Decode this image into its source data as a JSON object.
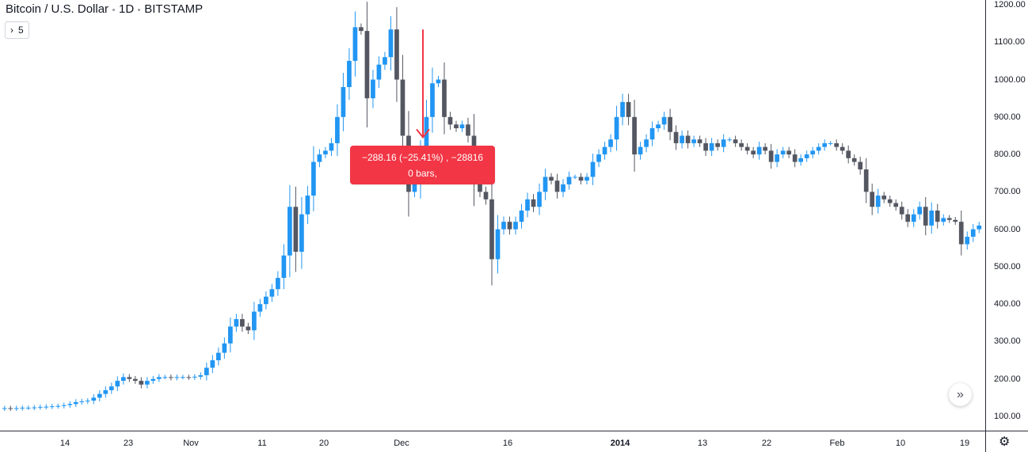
{
  "header": {
    "symbol": "Bitcoin / U.S. Dollar",
    "interval": "1D",
    "exchange": "BITSTAMP",
    "collapse_icon": "chevron-right-icon",
    "indicator_count": "5"
  },
  "measure": {
    "line1": "−288.16 (−25.41%) , −28816",
    "line2": "0 bars,",
    "color": "#f23645",
    "start_price": 1134,
    "end_price": 846
  },
  "colors": {
    "up": "#2196f3",
    "down": "#545761"
  },
  "price_axis": [
    "1200.00",
    "1100.00",
    "1000.00",
    "900.00",
    "800.00",
    "700.00",
    "600.00",
    "500.00",
    "400.00",
    "300.00",
    "200.00",
    "100.00"
  ],
  "time_axis": [
    {
      "label": "14",
      "bold": false
    },
    {
      "label": "23",
      "bold": false
    },
    {
      "label": "Nov",
      "bold": false
    },
    {
      "label": "11",
      "bold": false
    },
    {
      "label": "20",
      "bold": false
    },
    {
      "label": "Dec",
      "bold": false
    },
    {
      "label": "16",
      "bold": false
    },
    {
      "label": "2014",
      "bold": true
    },
    {
      "label": "13",
      "bold": false
    },
    {
      "label": "22",
      "bold": false
    },
    {
      "label": "Feb",
      "bold": false
    },
    {
      "label": "10",
      "bold": false
    },
    {
      "label": "19",
      "bold": false
    }
  ],
  "scroll_button_icon": "double-chevron-right-icon",
  "settings_icon": "gear-icon",
  "chart_data": {
    "type": "candlestick",
    "ylim": [
      80,
      1215
    ],
    "closes": [
      122,
      121,
      122,
      123,
      123,
      124,
      125,
      126,
      127,
      128,
      130,
      133,
      138,
      140,
      142,
      150,
      160,
      170,
      180,
      195,
      205,
      200,
      195,
      185,
      195,
      200,
      205,
      205,
      203,
      205,
      205,
      204,
      206,
      210,
      230,
      250,
      270,
      295,
      340,
      360,
      340,
      330,
      380,
      400,
      420,
      440,
      470,
      530,
      660,
      540,
      640,
      690,
      780,
      800,
      810,
      830,
      900,
      980,
      1050,
      1140,
      1130,
      950,
      1000,
      1040,
      1060,
      1134,
      1000,
      850,
      700,
      720,
      800,
      900,
      990,
      1000,
      900,
      880,
      870,
      880,
      850,
      720,
      700,
      680,
      520,
      600,
      620,
      600,
      620,
      650,
      680,
      660,
      700,
      740,
      730,
      700,
      720,
      740,
      740,
      730,
      740,
      780,
      800,
      820,
      840,
      900,
      940,
      900,
      800,
      820,
      840,
      870,
      880,
      900,
      860,
      830,
      850,
      830,
      840,
      830,
      810,
      830,
      820,
      840,
      840,
      830,
      820,
      810,
      800,
      820,
      810,
      780,
      800,
      810,
      800,
      780,
      790,
      800,
      810,
      820,
      830,
      830,
      820,
      810,
      790,
      780,
      760,
      700,
      660,
      690,
      680,
      670,
      660,
      640,
      620,
      640,
      660,
      610,
      650,
      620,
      630,
      625,
      620,
      560,
      580,
      600,
      610
    ],
    "price_range": [
      100,
      1200
    ]
  }
}
